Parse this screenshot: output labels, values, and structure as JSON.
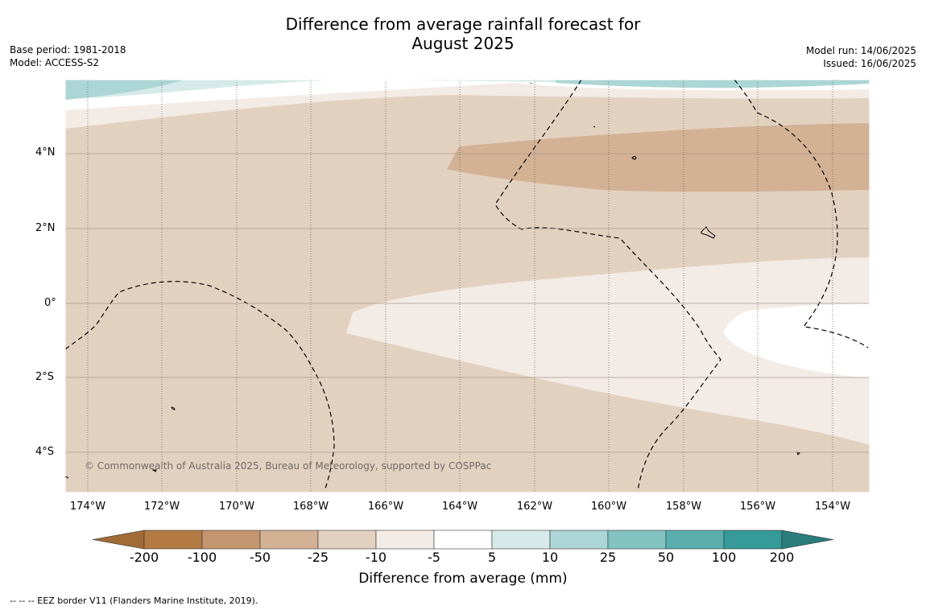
{
  "title_line1": "Difference from average rainfall forecast for",
  "title_line2": "August 2025",
  "base_period": "Base period: 1981-2018",
  "model": "Model: ACCESS-S2",
  "model_run": "Model run: 14/06/2025",
  "issued": "Issued: 16/06/2025",
  "copyright": "© Commonwealth of Australia 2025, Bureau of Meteorology, supported by COSPPac",
  "lat_labels": [
    "4°N",
    "2°N",
    "0°",
    "2°S",
    "4°S"
  ],
  "lon_labels": [
    "174°W",
    "172°W",
    "170°W",
    "168°W",
    "166°W",
    "164°W",
    "162°W",
    "160°W",
    "158°W",
    "156°W",
    "154°W"
  ],
  "colorbar": {
    "labels": [
      "-200",
      "-100",
      "-50",
      "-25",
      "-10",
      "-5",
      "5",
      "10",
      "25",
      "50",
      "100",
      "200"
    ],
    "colors": [
      "#a06b36",
      "#b37a44",
      "#c39670",
      "#d3b195",
      "#e3d1c0",
      "#f3ebe6",
      "#ffffff",
      "#d6ebe9",
      "#acd6d5",
      "#83c3c1",
      "#5aafae",
      "#359a99",
      "#2a7d7c"
    ],
    "title": "Difference from average (mm)"
  },
  "footer": "--  --  -- EEZ border V11 (Flanders Marine Institute, 2019)."
}
